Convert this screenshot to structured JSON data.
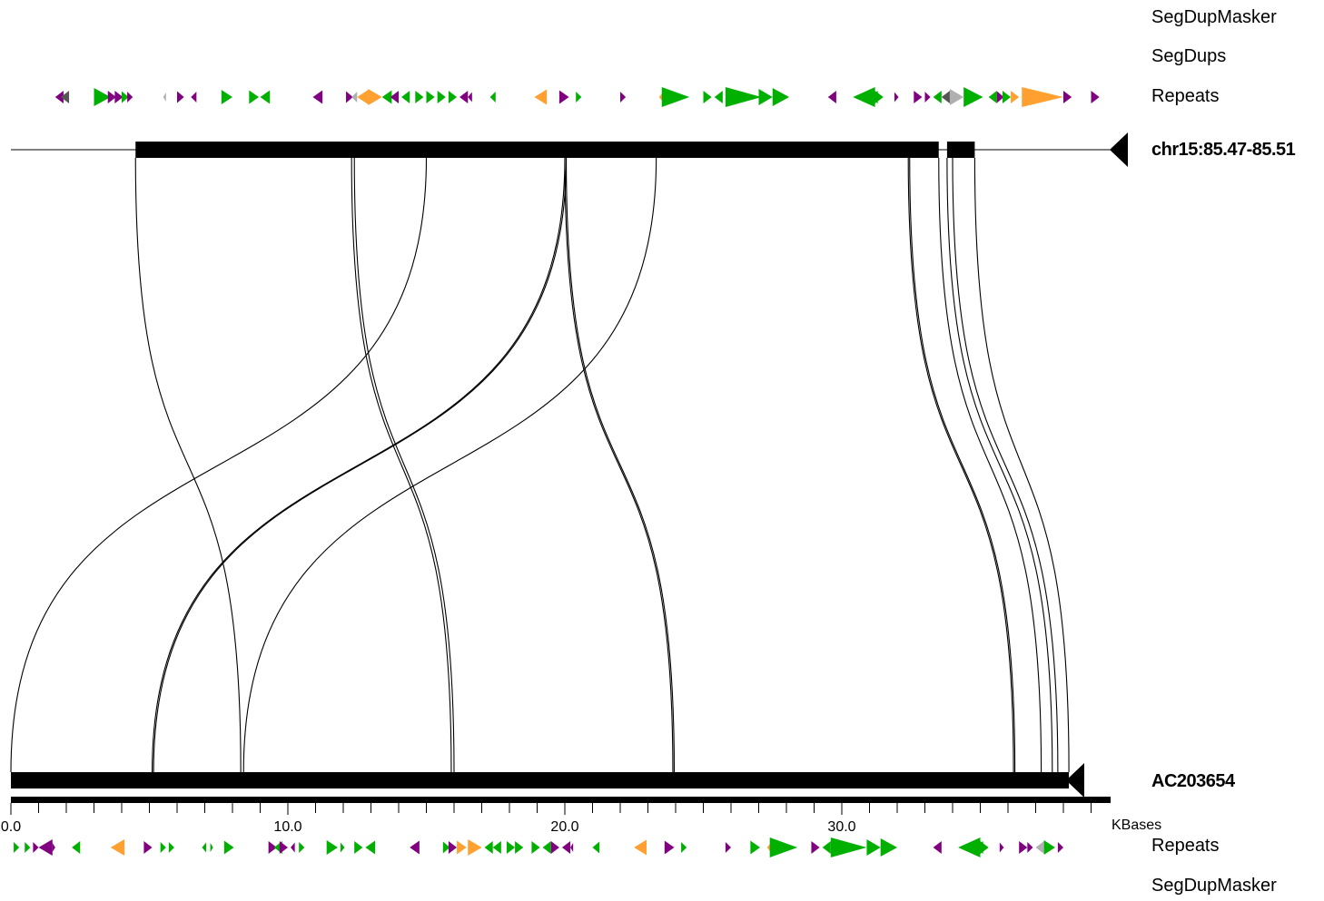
{
  "colors": {
    "purple": "#800080",
    "green": "#00b000",
    "orange": "#ffa030",
    "gray": "#b0b0b0",
    "darkgray": "#555555",
    "black": "#000000"
  },
  "labels": {
    "segdupmasker_top": "SegDupMasker",
    "segdups": "SegDups",
    "repeats_top": "Repeats",
    "chr": "chr15:85.47-85.51",
    "ac": "AC203654",
    "kbases": "KBases",
    "repeats_bottom": "Repeats",
    "segdupmasker_bottom": "SegDupMasker"
  },
  "axis": {
    "unit": "KBases",
    "min": 0,
    "max": 39.7,
    "major_ticks": [
      0,
      10,
      20,
      30
    ],
    "major_tick_labels": [
      "0.0",
      "10.0",
      "20.0",
      "30.0"
    ],
    "minor_step": 1
  },
  "top_sequence": {
    "name": "chr15:85.47-85.51",
    "strand": "minus",
    "blocks": [
      [
        4.5,
        33.5
      ],
      [
        33.8,
        34.8
      ]
    ]
  },
  "bottom_sequence": {
    "name": "AC203654",
    "strand": "minus",
    "blocks": [
      [
        0,
        38.2
      ]
    ]
  },
  "alignments": [
    {
      "top": 4.5,
      "bottom": 8.3
    },
    {
      "top": 15.0,
      "bottom": 0.0
    },
    {
      "top": 12.3,
      "bottom": 15.9
    },
    {
      "top": 12.4,
      "bottom": 16.0
    },
    {
      "top": 20.0,
      "bottom": 5.1
    },
    {
      "top": 20.05,
      "bottom": 5.15
    },
    {
      "top": 23.3,
      "bottom": 8.4
    },
    {
      "top": 20.0,
      "bottom": 23.9
    },
    {
      "top": 20.05,
      "bottom": 23.95
    },
    {
      "top": 32.4,
      "bottom": 36.2
    },
    {
      "top": 32.45,
      "bottom": 36.25
    },
    {
      "top": 33.5,
      "bottom": 37.2
    },
    {
      "top": 33.8,
      "bottom": 37.6
    },
    {
      "top": 34.0,
      "bottom": 37.8
    },
    {
      "top": 34.8,
      "bottom": 38.2
    }
  ],
  "repeats_top": [
    {
      "pos": 1.6,
      "dir": "L",
      "color": "purple",
      "size": 0.3
    },
    {
      "pos": 1.8,
      "dir": "L",
      "color": "darkgray",
      "size": 0.3
    },
    {
      "pos": 3.0,
      "dir": "R",
      "color": "green",
      "size": 0.6
    },
    {
      "pos": 3.5,
      "dir": "R",
      "color": "purple",
      "size": 0.3
    },
    {
      "pos": 3.75,
      "dir": "R",
      "color": "purple",
      "size": 0.3
    },
    {
      "pos": 4.0,
      "dir": "R",
      "color": "green",
      "size": 0.25
    },
    {
      "pos": 4.2,
      "dir": "R",
      "color": "purple",
      "size": 0.2
    },
    {
      "pos": 5.5,
      "dir": "L",
      "color": "gray",
      "size": 0.1
    },
    {
      "pos": 6.0,
      "dir": "R",
      "color": "purple",
      "size": 0.25
    },
    {
      "pos": 6.5,
      "dir": "L",
      "color": "purple",
      "size": 0.2
    },
    {
      "pos": 7.6,
      "dir": "R",
      "color": "green",
      "size": 0.4
    },
    {
      "pos": 8.6,
      "dir": "R",
      "color": "green",
      "size": 0.35
    },
    {
      "pos": 9.0,
      "dir": "L",
      "color": "green",
      "size": 0.35
    },
    {
      "pos": 10.9,
      "dir": "L",
      "color": "purple",
      "size": 0.35
    },
    {
      "pos": 12.1,
      "dir": "R",
      "color": "purple",
      "size": 0.25
    },
    {
      "pos": 12.3,
      "dir": "L",
      "color": "gray",
      "size": 0.2
    },
    {
      "pos": 12.5,
      "dir": "L",
      "color": "orange",
      "size": 0.4
    },
    {
      "pos": 12.9,
      "dir": "R",
      "color": "orange",
      "size": 0.5
    },
    {
      "pos": 13.4,
      "dir": "L",
      "color": "green",
      "size": 0.35
    },
    {
      "pos": 13.7,
      "dir": "L",
      "color": "purple",
      "size": 0.3
    },
    {
      "pos": 14.1,
      "dir": "L",
      "color": "green",
      "size": 0.3
    },
    {
      "pos": 14.6,
      "dir": "R",
      "color": "green",
      "size": 0.3
    },
    {
      "pos": 15.0,
      "dir": "R",
      "color": "green",
      "size": 0.3
    },
    {
      "pos": 15.4,
      "dir": "R",
      "color": "green",
      "size": 0.3
    },
    {
      "pos": 15.8,
      "dir": "R",
      "color": "green",
      "size": 0.3
    },
    {
      "pos": 16.2,
      "dir": "L",
      "color": "purple",
      "size": 0.3
    },
    {
      "pos": 16.5,
      "dir": "L",
      "color": "purple",
      "size": 0.15
    },
    {
      "pos": 17.3,
      "dir": "L",
      "color": "green",
      "size": 0.2
    },
    {
      "pos": 18.9,
      "dir": "L",
      "color": "orange",
      "size": 0.45
    },
    {
      "pos": 19.8,
      "dir": "R",
      "color": "purple",
      "size": 0.35
    },
    {
      "pos": 20.4,
      "dir": "R",
      "color": "green",
      "size": 0.2
    },
    {
      "pos": 22.0,
      "dir": "R",
      "color": "purple",
      "size": 0.2
    },
    {
      "pos": 23.4,
      "dir": "L",
      "color": "orange",
      "size": 0.15
    },
    {
      "pos": 23.5,
      "dir": "R",
      "color": "green",
      "size": 1.0
    },
    {
      "pos": 25.0,
      "dir": "R",
      "color": "green",
      "size": 0.3
    },
    {
      "pos": 25.4,
      "dir": "L",
      "color": "green",
      "size": 0.3
    },
    {
      "pos": 25.8,
      "dir": "R",
      "color": "green",
      "size": 1.3
    },
    {
      "pos": 27.0,
      "dir": "R",
      "color": "green",
      "size": 0.5
    },
    {
      "pos": 27.5,
      "dir": "R",
      "color": "green",
      "size": 0.6
    },
    {
      "pos": 29.5,
      "dir": "L",
      "color": "purple",
      "size": 0.3
    },
    {
      "pos": 30.4,
      "dir": "L",
      "color": "green",
      "size": 0.8
    },
    {
      "pos": 31.2,
      "dir": "R",
      "color": "green",
      "size": 0.3
    },
    {
      "pos": 31.0,
      "dir": "L",
      "color": "green",
      "size": 0.3
    },
    {
      "pos": 31.9,
      "dir": "R",
      "color": "purple",
      "size": 0.15
    },
    {
      "pos": 32.6,
      "dir": "R",
      "color": "purple",
      "size": 0.3
    },
    {
      "pos": 33.0,
      "dir": "R",
      "color": "purple",
      "size": 0.2
    },
    {
      "pos": 33.3,
      "dir": "L",
      "color": "green",
      "size": 0.3
    },
    {
      "pos": 33.6,
      "dir": "L",
      "color": "darkgray",
      "size": 0.3
    },
    {
      "pos": 33.9,
      "dir": "R",
      "color": "gray",
      "size": 0.5
    },
    {
      "pos": 34.4,
      "dir": "R",
      "color": "green",
      "size": 0.7
    },
    {
      "pos": 35.3,
      "dir": "L",
      "color": "green",
      "size": 0.3
    },
    {
      "pos": 35.6,
      "dir": "R",
      "color": "purple",
      "size": 0.25
    },
    {
      "pos": 35.8,
      "dir": "R",
      "color": "green",
      "size": 0.3
    },
    {
      "pos": 36.1,
      "dir": "R",
      "color": "orange",
      "size": 0.3
    },
    {
      "pos": 36.5,
      "dir": "R",
      "color": "orange",
      "size": 1.5
    },
    {
      "pos": 38.0,
      "dir": "R",
      "color": "purple",
      "size": 0.3
    },
    {
      "pos": 39.0,
      "dir": "R",
      "color": "purple",
      "size": 0.3
    }
  ],
  "repeats_bottom": [
    {
      "pos": 0.1,
      "dir": "R",
      "color": "green",
      "size": 0.2
    },
    {
      "pos": 0.5,
      "dir": "R",
      "color": "green",
      "size": 0.2
    },
    {
      "pos": 0.8,
      "dir": "R",
      "color": "purple",
      "size": 0.2
    },
    {
      "pos": 1.0,
      "dir": "L",
      "color": "purple",
      "size": 0.5
    },
    {
      "pos": 1.5,
      "dir": "R",
      "color": "purple",
      "size": 0.1
    },
    {
      "pos": 2.2,
      "dir": "L",
      "color": "green",
      "size": 0.3
    },
    {
      "pos": 3.6,
      "dir": "L",
      "color": "orange",
      "size": 0.5
    },
    {
      "pos": 4.8,
      "dir": "R",
      "color": "purple",
      "size": 0.3
    },
    {
      "pos": 5.4,
      "dir": "R",
      "color": "green",
      "size": 0.2
    },
    {
      "pos": 5.7,
      "dir": "R",
      "color": "green",
      "size": 0.2
    },
    {
      "pos": 6.9,
      "dir": "L",
      "color": "green",
      "size": 0.15
    },
    {
      "pos": 7.2,
      "dir": "R",
      "color": "green",
      "size": 0.1
    },
    {
      "pos": 7.7,
      "dir": "R",
      "color": "green",
      "size": 0.35
    },
    {
      "pos": 9.3,
      "dir": "R",
      "color": "purple",
      "size": 0.3
    },
    {
      "pos": 9.5,
      "dir": "L",
      "color": "green",
      "size": 0.3
    },
    {
      "pos": 9.7,
      "dir": "R",
      "color": "purple",
      "size": 0.3
    },
    {
      "pos": 10.1,
      "dir": "L",
      "color": "purple",
      "size": 0.15
    },
    {
      "pos": 10.4,
      "dir": "R",
      "color": "green",
      "size": 0.2
    },
    {
      "pos": 11.4,
      "dir": "R",
      "color": "green",
      "size": 0.4
    },
    {
      "pos": 11.9,
      "dir": "R",
      "color": "green",
      "size": 0.15
    },
    {
      "pos": 12.4,
      "dir": "R",
      "color": "green",
      "size": 0.3
    },
    {
      "pos": 12.8,
      "dir": "L",
      "color": "green",
      "size": 0.35
    },
    {
      "pos": 14.4,
      "dir": "L",
      "color": "purple",
      "size": 0.35
    },
    {
      "pos": 15.6,
      "dir": "R",
      "color": "green",
      "size": 0.25
    },
    {
      "pos": 15.8,
      "dir": "R",
      "color": "purple",
      "size": 0.3
    },
    {
      "pos": 16.1,
      "dir": "R",
      "color": "orange",
      "size": 0.35
    },
    {
      "pos": 16.5,
      "dir": "R",
      "color": "orange",
      "size": 0.5
    },
    {
      "pos": 17.1,
      "dir": "L",
      "color": "green",
      "size": 0.3
    },
    {
      "pos": 17.4,
      "dir": "L",
      "color": "green",
      "size": 0.3
    },
    {
      "pos": 17.9,
      "dir": "R",
      "color": "green",
      "size": 0.3
    },
    {
      "pos": 18.2,
      "dir": "R",
      "color": "green",
      "size": 0.3
    },
    {
      "pos": 18.8,
      "dir": "R",
      "color": "green",
      "size": 0.3
    },
    {
      "pos": 19.2,
      "dir": "L",
      "color": "green",
      "size": 0.3
    },
    {
      "pos": 19.5,
      "dir": "R",
      "color": "purple",
      "size": 0.3
    },
    {
      "pos": 19.9,
      "dir": "L",
      "color": "purple",
      "size": 0.3
    },
    {
      "pos": 20.2,
      "dir": "L",
      "color": "purple",
      "size": 0.1
    },
    {
      "pos": 21.0,
      "dir": "L",
      "color": "green",
      "size": 0.25
    },
    {
      "pos": 22.5,
      "dir": "L",
      "color": "orange",
      "size": 0.45
    },
    {
      "pos": 23.6,
      "dir": "R",
      "color": "purple",
      "size": 0.35
    },
    {
      "pos": 24.2,
      "dir": "R",
      "color": "green",
      "size": 0.2
    },
    {
      "pos": 25.8,
      "dir": "R",
      "color": "purple",
      "size": 0.2
    },
    {
      "pos": 26.7,
      "dir": "R",
      "color": "green",
      "size": 0.35
    },
    {
      "pos": 27.3,
      "dir": "L",
      "color": "orange",
      "size": 0.15
    },
    {
      "pos": 27.4,
      "dir": "R",
      "color": "green",
      "size": 1.0
    },
    {
      "pos": 28.9,
      "dir": "R",
      "color": "purple",
      "size": 0.3
    },
    {
      "pos": 29.3,
      "dir": "L",
      "color": "green",
      "size": 0.3
    },
    {
      "pos": 29.6,
      "dir": "R",
      "color": "green",
      "size": 1.3
    },
    {
      "pos": 30.9,
      "dir": "R",
      "color": "green",
      "size": 0.5
    },
    {
      "pos": 31.4,
      "dir": "R",
      "color": "green",
      "size": 0.6
    },
    {
      "pos": 33.3,
      "dir": "L",
      "color": "purple",
      "size": 0.3
    },
    {
      "pos": 34.2,
      "dir": "L",
      "color": "green",
      "size": 0.8
    },
    {
      "pos": 35.0,
      "dir": "R",
      "color": "green",
      "size": 0.3
    },
    {
      "pos": 34.8,
      "dir": "L",
      "color": "green",
      "size": 0.3
    },
    {
      "pos": 35.7,
      "dir": "R",
      "color": "purple",
      "size": 0.15
    },
    {
      "pos": 36.4,
      "dir": "R",
      "color": "purple",
      "size": 0.3
    },
    {
      "pos": 36.7,
      "dir": "R",
      "color": "purple",
      "size": 0.2
    },
    {
      "pos": 37.0,
      "dir": "L",
      "color": "gray",
      "size": 0.3
    },
    {
      "pos": 37.3,
      "dir": "R",
      "color": "green",
      "size": 0.4
    },
    {
      "pos": 37.8,
      "dir": "R",
      "color": "purple",
      "size": 0.2
    }
  ]
}
